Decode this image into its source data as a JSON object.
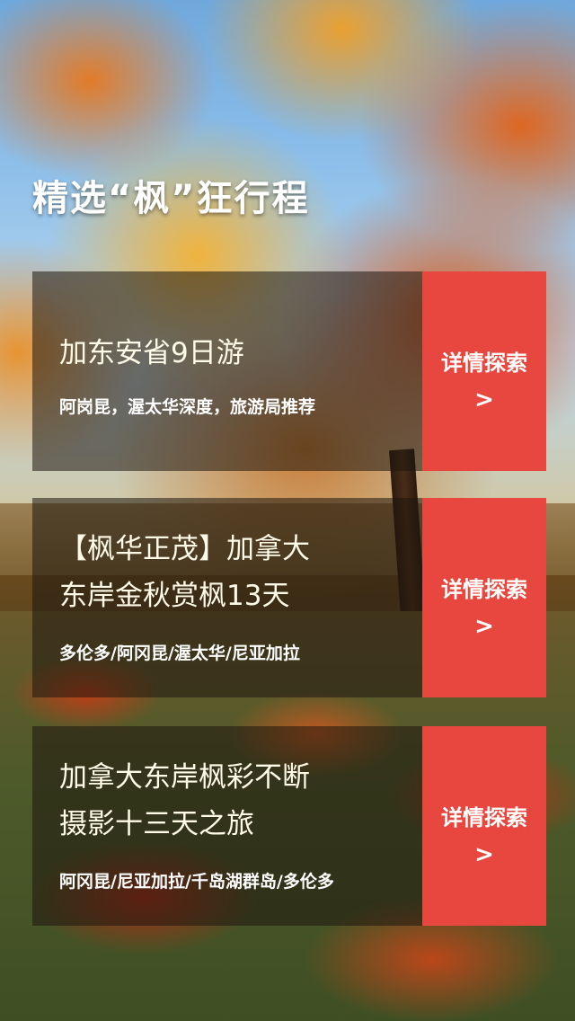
{
  "page": {
    "title": "精选“枫”狂行程"
  },
  "cards": [
    {
      "title_lines": [
        "加东安省9日游"
      ],
      "subtitle": "阿岗昆，渥太华深度，旅游局推荐",
      "button_label": "详情探索",
      "button_arrow": ">"
    },
    {
      "title_lines": [
        "【枫华正茂】加拿大",
        "东岸金秋赏枫13天"
      ],
      "subtitle": "多伦多/阿冈昆/渥太华/尼亚加拉",
      "button_label": "详情探索",
      "button_arrow": ">"
    },
    {
      "title_lines": [
        "加拿大东岸枫彩不断",
        "摄影十三天之旅"
      ],
      "subtitle": "阿冈昆/尼亚加拉/千岛湖群岛/多伦多",
      "button_label": "详情探索",
      "button_arrow": ">"
    }
  ],
  "colors": {
    "button": "#e8473f",
    "card_overlay": "rgba(30,22,14,0.55)",
    "title": "#ffffff"
  },
  "icons": {
    "arrow": "chevron-right-icon"
  }
}
